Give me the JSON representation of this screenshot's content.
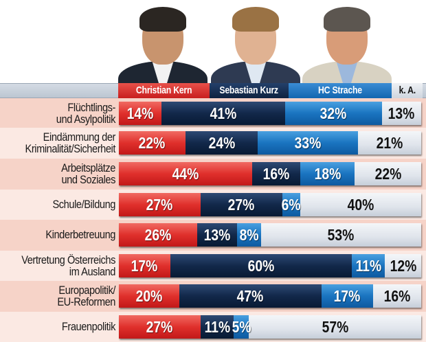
{
  "header": {
    "columns": [
      {
        "label": "Christian Kern",
        "color": "#d92a26"
      },
      {
        "label": "Sebastian Kurz",
        "color": "#0f2444"
      },
      {
        "label": "HC Strache",
        "color": "#1a72c0"
      },
      {
        "label": "k. A.",
        "color": "#dde2e9"
      }
    ]
  },
  "rows": [
    {
      "label_line1": "Flüchtlings-",
      "label_line2": "und Asylpolitik",
      "values": [
        "14%",
        "41%",
        "32%",
        "13%"
      ]
    },
    {
      "label_line1": "Eindämmung der",
      "label_line2": "Kriminalität/Sicherheit",
      "values": [
        "22%",
        "24%",
        "33%",
        "21%"
      ]
    },
    {
      "label_line1": "Arbeitsplätze",
      "label_line2": "und Soziales",
      "values": [
        "44%",
        "16%",
        "18%",
        "22%"
      ]
    },
    {
      "label_line1": "Schule/Bildung",
      "label_line2": "",
      "values": [
        "27%",
        "27%",
        "6%",
        "40%"
      ]
    },
    {
      "label_line1": "Kinderbetreuung",
      "label_line2": "",
      "values": [
        "26%",
        "13%",
        "8%",
        "53%"
      ]
    },
    {
      "label_line1": "Vertretung Österreichs",
      "label_line2": "im Ausland",
      "values": [
        "17%",
        "60%",
        "11%",
        "12%"
      ]
    },
    {
      "label_line1": "Europapolitik/",
      "label_line2": "EU-Reformen",
      "values": [
        "20%",
        "47%",
        "17%",
        "16%"
      ]
    },
    {
      "label_line1": "Frauenpolitik",
      "label_line2": "",
      "values": [
        "27%",
        "11%",
        "5%",
        "57%"
      ]
    }
  ],
  "chart_data": {
    "type": "bar",
    "orientation": "horizontal-stacked-100",
    "title": "",
    "xlabel": "",
    "ylabel": "",
    "categories": [
      "Flüchtlings- und Asylpolitik",
      "Eindämmung der Kriminalität/Sicherheit",
      "Arbeitsplätze und Soziales",
      "Schule/Bildung",
      "Kinderbetreuung",
      "Vertretung Österreichs im Ausland",
      "Europapolitik/EU-Reformen",
      "Frauenpolitik"
    ],
    "series": [
      {
        "name": "Christian Kern",
        "color": "#d92a26",
        "values": [
          14,
          22,
          44,
          27,
          26,
          17,
          20,
          27
        ]
      },
      {
        "name": "Sebastian Kurz",
        "color": "#0f2444",
        "values": [
          41,
          24,
          16,
          27,
          13,
          60,
          47,
          11
        ]
      },
      {
        "name": "HC Strache",
        "color": "#1a72c0",
        "values": [
          32,
          33,
          18,
          6,
          8,
          11,
          17,
          5
        ]
      },
      {
        "name": "k. A.",
        "color": "#dde2e9",
        "values": [
          13,
          21,
          22,
          40,
          53,
          12,
          16,
          57
        ]
      }
    ],
    "legend_position": "top",
    "xlim": [
      0,
      100
    ],
    "grid": false
  }
}
